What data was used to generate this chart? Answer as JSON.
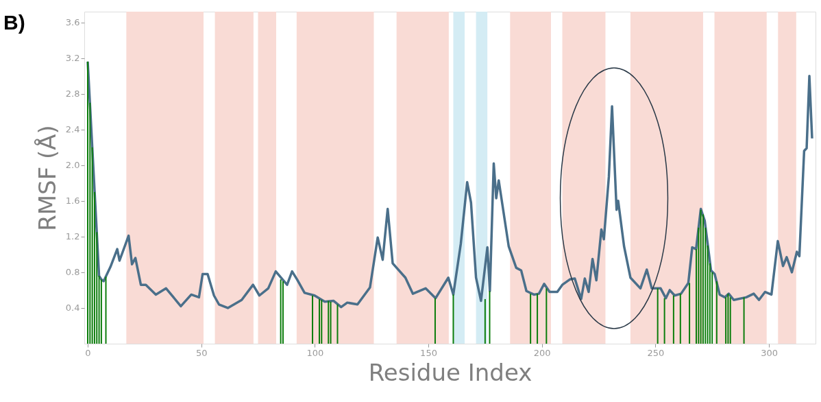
{
  "chart_data": {
    "type": "line",
    "title": "B)",
    "xlabel": "Residue Index",
    "ylabel": "RMSF (Å)",
    "xlim": [
      0,
      319
    ],
    "ylim": [
      0,
      3.72
    ],
    "xticks": [
      0,
      50,
      100,
      150,
      200,
      250,
      300
    ],
    "yticks": [
      0.4,
      0.8,
      1.2,
      1.6,
      {
        "value": 2,
        "label": "2.0"
      },
      2.4,
      2.8,
      3.2,
      3.6
    ],
    "grid": false,
    "marker": "none",
    "line_style": "solid",
    "bands": [
      {
        "axis": "x",
        "from": 17,
        "to": 51,
        "color": "#f9dbd5"
      },
      {
        "axis": "x",
        "from": 56,
        "to": 73,
        "color": "#f9dbd5"
      },
      {
        "axis": "x",
        "from": 75,
        "to": 83,
        "color": "#f9dbd5"
      },
      {
        "axis": "x",
        "from": 92,
        "to": 126,
        "color": "#f9dbd5"
      },
      {
        "axis": "x",
        "from": 136,
        "to": 159,
        "color": "#f9dbd5"
      },
      {
        "axis": "x",
        "from": 161,
        "to": 166,
        "color": "#d4ecf4"
      },
      {
        "axis": "x",
        "from": 171,
        "to": 176,
        "color": "#d4ecf4"
      },
      {
        "axis": "x",
        "from": 186,
        "to": 204,
        "color": "#f9dbd5"
      },
      {
        "axis": "x",
        "from": 209,
        "to": 228,
        "color": "#f9dbd5"
      },
      {
        "axis": "x",
        "from": 239,
        "to": 271,
        "color": "#f9dbd5"
      },
      {
        "axis": "x",
        "from": 276,
        "to": 299,
        "color": "#f9dbd5"
      },
      {
        "axis": "x",
        "from": 304,
        "to": 312,
        "color": "#f9dbd5"
      }
    ],
    "series": [
      {
        "type": "bar",
        "color": "#0b7d0b",
        "x": [
          0,
          1,
          2,
          3,
          4,
          5,
          6,
          8,
          85,
          86,
          99,
          102,
          103,
          106,
          107,
          110,
          153,
          161,
          175,
          177,
          195,
          198,
          202,
          251,
          254,
          258,
          261,
          265,
          268,
          269,
          270,
          271,
          272,
          273,
          274,
          275,
          277,
          281,
          282,
          283,
          289
        ],
        "values": [
          3.16,
          2.7,
          2.2,
          1.7,
          1.25,
          0.76,
          0.72,
          0.75,
          0.72,
          0.7,
          0.54,
          0.5,
          0.49,
          0.48,
          0.47,
          0.44,
          0.51,
          0.55,
          0.5,
          0.59,
          0.56,
          0.56,
          0.62,
          0.62,
          0.51,
          0.54,
          0.56,
          0.68,
          1.06,
          1.3,
          1.5,
          1.45,
          1.3,
          1.1,
          0.9,
          0.8,
          0.7,
          0.52,
          0.56,
          0.52,
          0.52
        ]
      },
      {
        "color": "#4a6f8a",
        "x": [
          0,
          5,
          6,
          7,
          10,
          13,
          14,
          18,
          19.5,
          21,
          23.4,
          25.6,
          30,
          34.5,
          41,
          45.6,
          49,
          50.6,
          52.8,
          55.6,
          57.8,
          61.7,
          67.8,
          72.8,
          75.6,
          79.5,
          82.8,
          87.8,
          90,
          92.2,
          95.5,
          99.9,
          104.4,
          108.3,
          111.6,
          114.3,
          118.8,
          124.3,
          127.7,
          129.9,
          132.1,
          134.3,
          139.9,
          143.2,
          148.8,
          153.2,
          158.8,
          161,
          164.3,
          167.1,
          168.8,
          171,
          173.2,
          176,
          177.1,
          178.8,
          179.9,
          181,
          185.4,
          188.7,
          190.9,
          193.2,
          196.5,
          198.7,
          201,
          203.4,
          206.8,
          209,
          212.3,
          214.5,
          217.3,
          218.9,
          220.6,
          222.3,
          224,
          226.2,
          227.3,
          229.5,
          230.9,
          232.9,
          233.6,
          236.2,
          239,
          243.4,
          246.2,
          248.4,
          252.3,
          254.6,
          256.3,
          258.5,
          261.3,
          264.5,
          266.2,
          267.9,
          270,
          271.7,
          274.5,
          276.1,
          278.3,
          280.6,
          282.3,
          284.5,
          290,
          293.3,
          295.6,
          298.3,
          301.1,
          303.9,
          306.2,
          307.8,
          310.1,
          312.3,
          313.4,
          315.5,
          316.6,
          317.8,
          319
        ],
        "values": [
          3.16,
          0.76,
          0.72,
          0.7,
          0.86,
          1.06,
          0.93,
          1.21,
          0.89,
          0.96,
          0.66,
          0.66,
          0.55,
          0.62,
          0.42,
          0.55,
          0.52,
          0.78,
          0.78,
          0.54,
          0.44,
          0.4,
          0.49,
          0.66,
          0.54,
          0.62,
          0.81,
          0.66,
          0.81,
          0.72,
          0.57,
          0.54,
          0.47,
          0.48,
          0.41,
          0.46,
          0.44,
          0.63,
          1.19,
          0.94,
          1.51,
          0.9,
          0.74,
          0.56,
          0.62,
          0.51,
          0.74,
          0.55,
          1.12,
          1.81,
          1.58,
          0.74,
          0.48,
          1.08,
          0.59,
          2.02,
          1.63,
          1.83,
          1.09,
          0.85,
          0.82,
          0.59,
          0.55,
          0.56,
          0.67,
          0.58,
          0.58,
          0.66,
          0.72,
          0.73,
          0.5,
          0.73,
          0.58,
          0.95,
          0.71,
          1.28,
          1.17,
          1.87,
          2.66,
          1.5,
          1.6,
          1.09,
          0.74,
          0.62,
          0.83,
          0.62,
          0.62,
          0.51,
          0.6,
          0.54,
          0.56,
          0.68,
          1.08,
          1.06,
          1.51,
          1.38,
          0.82,
          0.78,
          0.55,
          0.52,
          0.56,
          0.49,
          0.52,
          0.56,
          0.49,
          0.58,
          0.55,
          1.15,
          0.87,
          0.97,
          0.8,
          1.03,
          0.98,
          2.16,
          2.19,
          3.0,
          2.3
        ]
      }
    ]
  }
}
